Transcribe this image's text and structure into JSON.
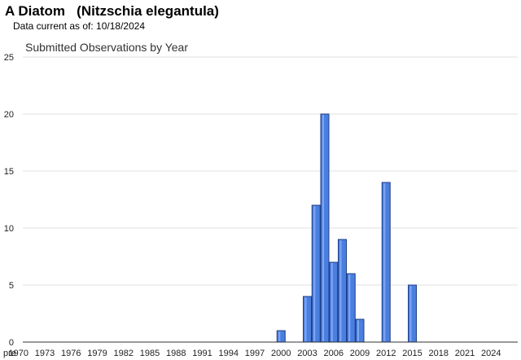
{
  "header": {
    "title": "A Diatom   (Nitzschia elegantula)",
    "subtitle": "Data current as of: 10/18/2024"
  },
  "chart_data": {
    "type": "bar",
    "title": "Submitted Observations by Year",
    "xlabel": "",
    "ylabel": "",
    "ylim": [
      0,
      25
    ],
    "yticks": [
      0,
      5,
      10,
      15,
      20,
      25
    ],
    "grid": true,
    "bar_color": "#4a7fe0",
    "categories": [
      "pre",
      "1970",
      "1971",
      "1972",
      "1973",
      "1974",
      "1975",
      "1976",
      "1977",
      "1978",
      "1979",
      "1980",
      "1981",
      "1982",
      "1983",
      "1984",
      "1985",
      "1986",
      "1987",
      "1988",
      "1989",
      "1990",
      "1991",
      "1992",
      "1993",
      "1994",
      "1995",
      "1996",
      "1997",
      "1998",
      "1999",
      "2000",
      "2001",
      "2002",
      "2003",
      "2004",
      "2005",
      "2006",
      "2007",
      "2008",
      "2009",
      "2010",
      "2011",
      "2012",
      "2013",
      "2014",
      "2015",
      "2016",
      "2017",
      "2018",
      "2019",
      "2020",
      "2021",
      "2022",
      "2023",
      "2024"
    ],
    "x_tick_labels": [
      "pre",
      "1970",
      "1973",
      "1976",
      "1979",
      "1982",
      "1985",
      "1988",
      "1991",
      "1994",
      "1997",
      "2000",
      "2003",
      "2006",
      "2009",
      "2012",
      "2015",
      "2018",
      "2021",
      "2024"
    ],
    "values": [
      0,
      0,
      0,
      0,
      0,
      0,
      0,
      0,
      0,
      0,
      0,
      0,
      0,
      0,
      0,
      0,
      0,
      0,
      0,
      0,
      0,
      0,
      0,
      0,
      0,
      0,
      0,
      0,
      0,
      0,
      0,
      1,
      0,
      0,
      4,
      12,
      20,
      7,
      9,
      6,
      2,
      0,
      0,
      14,
      0,
      0,
      5,
      0,
      0,
      0,
      0,
      0,
      0,
      0,
      0,
      0
    ]
  }
}
